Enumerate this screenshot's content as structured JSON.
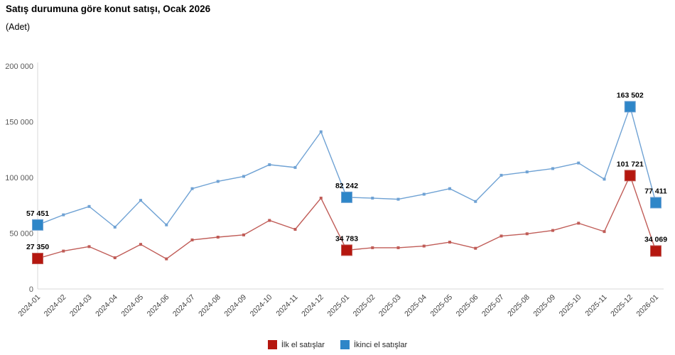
{
  "title": "Satış durumuna göre konut satışı, Ocak 2026",
  "subtitle": "(Adet)",
  "legend": [
    {
      "label": "İlk el satışlar",
      "color": "#b5170f"
    },
    {
      "label": "İkinci el satışlar",
      "color": "#2e86c8"
    }
  ],
  "colors": {
    "axis": "#d9d9d9",
    "ytick_text": "#595959",
    "xtick_text": "#404040",
    "point_label_text": "#000000"
  },
  "chart_data": {
    "type": "line",
    "title": "Satış durumuna göre konut satışı, Ocak 2026",
    "ylabel": "(Adet)",
    "ylim": [
      0,
      200000
    ],
    "ytick_labels": [
      "0",
      "50 000",
      "100 000",
      "150 000",
      "200 000"
    ],
    "yticks": [
      0,
      50000,
      100000,
      150000,
      200000
    ],
    "grid": false,
    "legend_position": "bottom",
    "x": [
      "2024-01",
      "2024-02",
      "2024-03",
      "2024-04",
      "2024-05",
      "2024-06",
      "2024-07",
      "2024-08",
      "2024-09",
      "2024-10",
      "2024-11",
      "2024-12",
      "2025-01",
      "2025-02",
      "2025-03",
      "2025-04",
      "2025-05",
      "2025-06",
      "2025-07",
      "2025-08",
      "2025-09",
      "2025-10",
      "2025-11",
      "2025-12",
      "2026-01"
    ],
    "series": [
      {
        "name": "İkinci el satışlar",
        "marker_color": "#2e86c8",
        "line_color": "#6fa2d4",
        "values": [
          57451,
          66500,
          74000,
          55500,
          79500,
          57500,
          90000,
          96500,
          101000,
          111500,
          109000,
          141000,
          82242,
          81500,
          80500,
          85000,
          90000,
          78500,
          102000,
          105000,
          108000,
          113000,
          98500,
          163502,
          77411
        ],
        "point_labels": {
          "0": "57 451",
          "12": "82 242",
          "23": "163 502",
          "24": "77 411"
        }
      },
      {
        "name": "İlk el satışlar",
        "marker_color": "#b5170f",
        "line_color": "#c05c57",
        "values": [
          27350,
          34000,
          38000,
          28000,
          40000,
          27000,
          44000,
          46500,
          48500,
          61500,
          53500,
          81500,
          34783,
          37000,
          37000,
          38500,
          42000,
          36500,
          47500,
          49500,
          52500,
          59000,
          51500,
          101721,
          34069
        ],
        "point_labels": {
          "0": "27 350",
          "12": "34 783",
          "23": "101 721",
          "24": "34 069"
        }
      }
    ]
  }
}
